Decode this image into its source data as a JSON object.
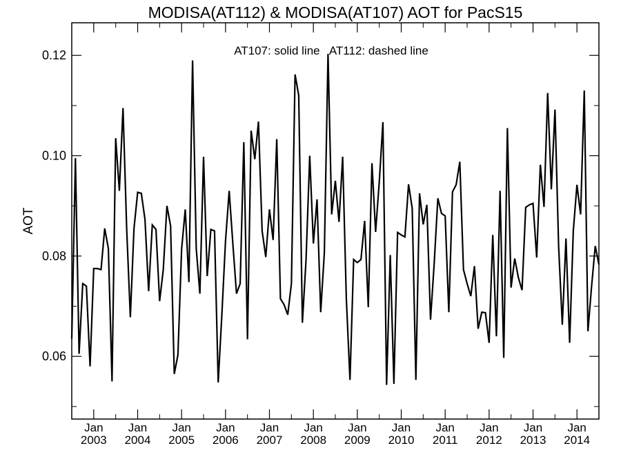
{
  "chart_data": {
    "type": "line",
    "title": "MODISA(AT112) & MODISA(AT107)  AOT for PacS15",
    "ylabel": "AOT",
    "xlabel": "",
    "annotation": "AT107: solid line   AT112: dashed line",
    "ylim": [
      0.0475,
      0.1265
    ],
    "yticks": [
      {
        "value": 0.06,
        "label": "0.06"
      },
      {
        "value": 0.08,
        "label": "0.08"
      },
      {
        "value": 0.1,
        "label": "0.10"
      },
      {
        "value": 0.12,
        "label": "0.12"
      }
    ],
    "xlim": [
      "2002-07-01",
      "2014-07-01"
    ],
    "xticks": [
      {
        "date": "2003-01-01",
        "month": "Jan",
        "year": "2003"
      },
      {
        "date": "2004-01-01",
        "month": "Jan",
        "year": "2004"
      },
      {
        "date": "2005-01-01",
        "month": "Jan",
        "year": "2005"
      },
      {
        "date": "2006-01-01",
        "month": "Jan",
        "year": "2006"
      },
      {
        "date": "2007-01-01",
        "month": "Jan",
        "year": "2007"
      },
      {
        "date": "2008-01-01",
        "month": "Jan",
        "year": "2008"
      },
      {
        "date": "2009-01-01",
        "month": "Jan",
        "year": "2009"
      },
      {
        "date": "2010-01-01",
        "month": "Jan",
        "year": "2010"
      },
      {
        "date": "2011-01-01",
        "month": "Jan",
        "year": "2011"
      },
      {
        "date": "2012-01-01",
        "month": "Jan",
        "year": "2012"
      },
      {
        "date": "2013-01-01",
        "month": "Jan",
        "year": "2013"
      },
      {
        "date": "2014-01-01",
        "month": "Jan",
        "year": "2014"
      }
    ],
    "grid": false,
    "line_color": "#000000",
    "series": [
      {
        "x": [
          "2002-07",
          "2002-08",
          "2002-09",
          "2002-10",
          "2002-11",
          "2002-12",
          "2003-01",
          "2003-02",
          "2003-03",
          "2003-04",
          "2003-05",
          "2003-06",
          "2003-07",
          "2003-08",
          "2003-09",
          "2003-10",
          "2003-11",
          "2003-12",
          "2004-01",
          "2004-02",
          "2004-03",
          "2004-04",
          "2004-05",
          "2004-06",
          "2004-07",
          "2004-08",
          "2004-09",
          "2004-10",
          "2004-11",
          "2004-12",
          "2005-01",
          "2005-02",
          "2005-03",
          "2005-04",
          "2005-05",
          "2005-06",
          "2005-07",
          "2005-08",
          "2005-09",
          "2005-10",
          "2005-11",
          "2005-12",
          "2006-01",
          "2006-02",
          "2006-03",
          "2006-04",
          "2006-05",
          "2006-06",
          "2006-07",
          "2006-08",
          "2006-09",
          "2006-10",
          "2006-11",
          "2006-12",
          "2007-01",
          "2007-02",
          "2007-03",
          "2007-04",
          "2007-05",
          "2007-06",
          "2007-07",
          "2007-08",
          "2007-09",
          "2007-10",
          "2007-11",
          "2007-12",
          "2008-01",
          "2008-02",
          "2008-03",
          "2008-04",
          "2008-05",
          "2008-06",
          "2008-07",
          "2008-08",
          "2008-09",
          "2008-10",
          "2008-11",
          "2008-12",
          "2009-01",
          "2009-02",
          "2009-03",
          "2009-04",
          "2009-05",
          "2009-06",
          "2009-07",
          "2009-08",
          "2009-09",
          "2009-10",
          "2009-11",
          "2009-12",
          "2010-01",
          "2010-02",
          "2010-03",
          "2010-04",
          "2010-05",
          "2010-06",
          "2010-07",
          "2010-08",
          "2010-09",
          "2010-10",
          "2010-11",
          "2010-12",
          "2011-01",
          "2011-02",
          "2011-03",
          "2011-04",
          "2011-05",
          "2011-06",
          "2011-07",
          "2011-08",
          "2011-09",
          "2011-10",
          "2011-11",
          "2011-12",
          "2012-01",
          "2012-02",
          "2012-03",
          "2012-04",
          "2012-05",
          "2012-06",
          "2012-07",
          "2012-08",
          "2012-09",
          "2012-10",
          "2012-11",
          "2012-12",
          "2013-01",
          "2013-02",
          "2013-03",
          "2013-04",
          "2013-05",
          "2013-06",
          "2013-07",
          "2013-08",
          "2013-09",
          "2013-10",
          "2013-11",
          "2013-12",
          "2014-01",
          "2014-02",
          "2014-03",
          "2014-04",
          "2014-05",
          "2014-06",
          "2014-07"
        ],
        "values": [
          0.0635,
          0.0995,
          0.0605,
          0.0745,
          0.074,
          0.058,
          0.0775,
          0.0775,
          0.0773,
          0.0855,
          0.0815,
          0.055,
          0.1035,
          0.093,
          0.1095,
          0.0855,
          0.0678,
          0.0855,
          0.0927,
          0.0925,
          0.0873,
          0.073,
          0.0862,
          0.0853,
          0.071,
          0.0773,
          0.09,
          0.086,
          0.0565,
          0.0603,
          0.0813,
          0.0893,
          0.0748,
          0.119,
          0.0815,
          0.0725,
          0.0998,
          0.076,
          0.0853,
          0.085,
          0.0548,
          0.0683,
          0.083,
          0.093,
          0.0825,
          0.0725,
          0.0745,
          0.1027,
          0.0634,
          0.105,
          0.0993,
          0.1068,
          0.085,
          0.0798,
          0.0893,
          0.0832,
          0.1033,
          0.0715,
          0.0703,
          0.0683,
          0.0745,
          0.1162,
          0.112,
          0.0667,
          0.0793,
          0.1,
          0.0825,
          0.0913,
          0.0688,
          0.0807,
          0.1203,
          0.0883,
          0.095,
          0.0868,
          0.0998,
          0.0715,
          0.0553,
          0.0793,
          0.0787,
          0.0793,
          0.087,
          0.0698,
          0.0985,
          0.0848,
          0.0948,
          0.1067,
          0.0543,
          0.0802,
          0.0545,
          0.0847,
          0.0842,
          0.0838,
          0.0943,
          0.0895,
          0.0553,
          0.0925,
          0.0863,
          0.0902,
          0.0673,
          0.0785,
          0.0915,
          0.0885,
          0.088,
          0.0688,
          0.0928,
          0.0942,
          0.0988,
          0.0773,
          0.0745,
          0.072,
          0.078,
          0.0655,
          0.0688,
          0.0687,
          0.0627,
          0.0842,
          0.064,
          0.093,
          0.0597,
          0.1055,
          0.0737,
          0.0795,
          0.0757,
          0.0732,
          0.0897,
          0.0902,
          0.0905,
          0.0797,
          0.0982,
          0.0898,
          0.1125,
          0.0933,
          0.1092,
          0.0818,
          0.0663,
          0.0835,
          0.0627,
          0.085,
          0.0942,
          0.0883,
          0.113,
          0.065,
          0.074,
          0.082,
          0.0783
        ]
      }
    ]
  }
}
